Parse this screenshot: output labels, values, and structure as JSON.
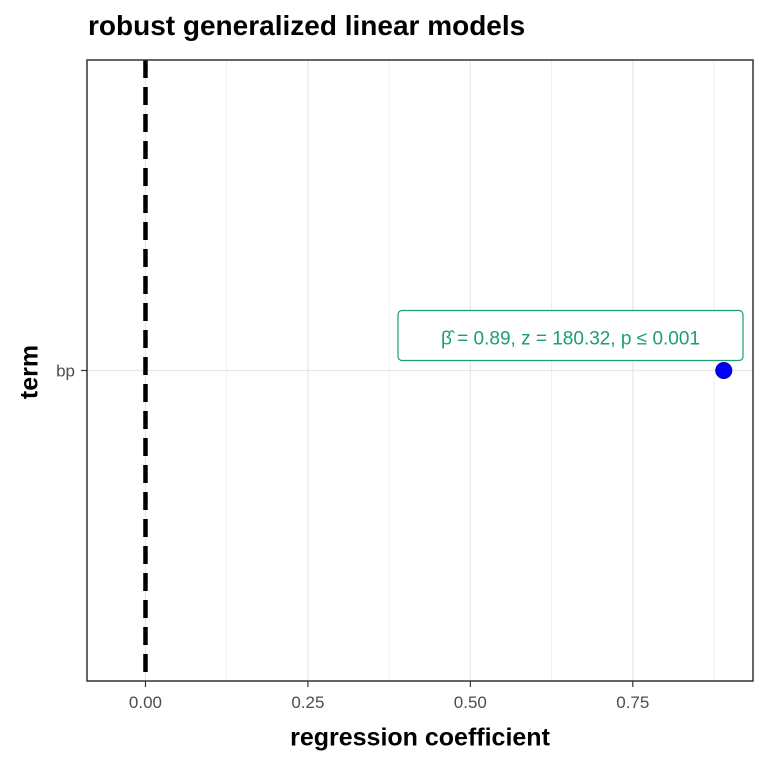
{
  "chart_data": {
    "type": "scatter",
    "title": "robust generalized linear models",
    "xlabel": "regression coefficient",
    "ylabel": "term",
    "xlim": [
      -0.09,
      0.935
    ],
    "x_ticks": [
      0.0,
      0.25,
      0.5,
      0.75
    ],
    "x_tick_labels": [
      "0.00",
      "0.25",
      "0.50",
      "0.75"
    ],
    "x_minor_ticks": [
      0.125,
      0.375,
      0.625,
      0.875
    ],
    "categories": [
      "bp"
    ],
    "points": [
      {
        "term": "bp",
        "estimate": 0.89,
        "label": "β̂ = 0.89, z = 180.32, p ≤ 0.001"
      }
    ],
    "reference_line": {
      "x": 0,
      "style": "dashed",
      "color": "#000000"
    },
    "grid": true,
    "point_color": "#0000ff",
    "label_color": "#1b9e77"
  }
}
